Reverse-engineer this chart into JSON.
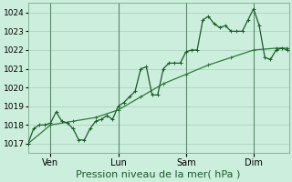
{
  "xlabel": "Pression niveau de la mer( hPa )",
  "bg_color": "#cceedd",
  "grid_color": "#aaccbb",
  "line_color1": "#1a5c28",
  "line_color2": "#2d7a3a",
  "ylim": [
    1016.5,
    1024.5
  ],
  "yticks": [
    1017,
    1018,
    1019,
    1020,
    1021,
    1022,
    1023,
    1024
  ],
  "day_labels": [
    "Ven",
    "Lun",
    "Sam",
    "Dim"
  ],
  "day_positions": [
    16,
    64,
    112,
    160
  ],
  "vline_x": [
    16,
    64,
    112,
    160
  ],
  "xlim": [
    0,
    185
  ],
  "series1_x": [
    0,
    4,
    8,
    12,
    16,
    20,
    24,
    28,
    32,
    36,
    40,
    44,
    48,
    52,
    56,
    60,
    64,
    68,
    72,
    76,
    80,
    84,
    88,
    92,
    96,
    100,
    104,
    108,
    112,
    116,
    120,
    124,
    128,
    132,
    136,
    140,
    144,
    148,
    152,
    156,
    160,
    164,
    168,
    172,
    176,
    180,
    184
  ],
  "series1_y": [
    1017.0,
    1017.8,
    1018.0,
    1018.0,
    1018.1,
    1018.7,
    1018.2,
    1018.1,
    1017.8,
    1017.2,
    1017.2,
    1017.8,
    1018.2,
    1018.3,
    1018.5,
    1018.3,
    1019.0,
    1019.2,
    1019.5,
    1019.8,
    1021.0,
    1021.1,
    1019.6,
    1019.6,
    1021.0,
    1021.3,
    1021.3,
    1021.3,
    1021.9,
    1022.0,
    1022.0,
    1023.6,
    1023.8,
    1023.4,
    1023.2,
    1023.3,
    1023.0,
    1023.0,
    1023.0,
    1023.6,
    1024.2,
    1023.3,
    1021.6,
    1021.5,
    1022.0,
    1022.1,
    1022.0
  ],
  "series2_x": [
    0,
    16,
    32,
    48,
    64,
    80,
    96,
    112,
    128,
    144,
    160,
    176,
    184
  ],
  "series2_y": [
    1017.0,
    1018.0,
    1018.2,
    1018.4,
    1018.8,
    1019.5,
    1020.2,
    1020.7,
    1021.2,
    1021.6,
    1022.0,
    1022.1,
    1022.1
  ],
  "xlabel_fontsize": 8,
  "ytick_fontsize": 6.5,
  "xtick_fontsize": 7
}
